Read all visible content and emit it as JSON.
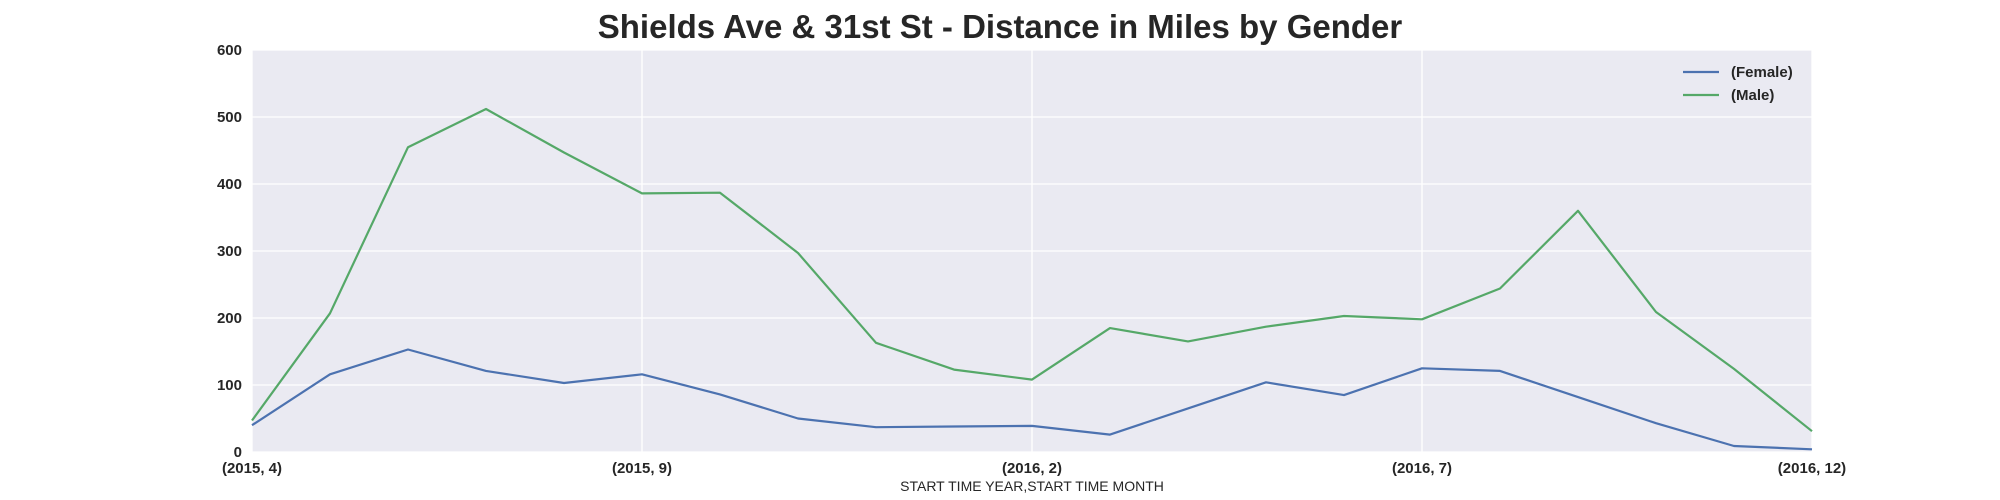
{
  "chart_data": {
    "type": "line",
    "title": "Shields Ave & 31st St - Distance in Miles by Gender",
    "xlabel": "START TIME YEAR,START TIME MONTH",
    "ylabel": "",
    "ylim": [
      0,
      600
    ],
    "yticks": [
      0,
      100,
      200,
      300,
      400,
      500,
      600
    ],
    "x": [
      "(2015, 4)",
      "(2015, 5)",
      "(2015, 6)",
      "(2015, 7)",
      "(2015, 8)",
      "(2015, 9)",
      "(2015, 10)",
      "(2015, 11)",
      "(2015, 12)",
      "(2016, 1)",
      "(2016, 2)",
      "(2016, 3)",
      "(2016, 4)",
      "(2016, 5)",
      "(2016, 6)",
      "(2016, 7)",
      "(2016, 8)",
      "(2016, 9)",
      "(2016, 10)",
      "(2016, 11)",
      "(2016, 12)"
    ],
    "xtick_labels": [
      "(2015, 4)",
      "(2015, 9)",
      "(2016, 2)",
      "(2016, 7)",
      "(2016, 12)"
    ],
    "series": [
      {
        "name": "(Female)",
        "color": "#4c72b0",
        "values": [
          40,
          116,
          153,
          121,
          103,
          116,
          86,
          50,
          37,
          38,
          39,
          26,
          65,
          104,
          85,
          125,
          121,
          82,
          43,
          9,
          4
        ]
      },
      {
        "name": "(Male)",
        "color": "#55a868",
        "values": [
          47,
          207,
          455,
          512,
          447,
          386,
          387,
          297,
          163,
          123,
          108,
          185,
          165,
          187,
          203,
          198,
          244,
          360,
          209,
          124,
          31
        ]
      }
    ],
    "grid": true,
    "legend_position": "top-right",
    "background_color": "#eaeaf2"
  }
}
